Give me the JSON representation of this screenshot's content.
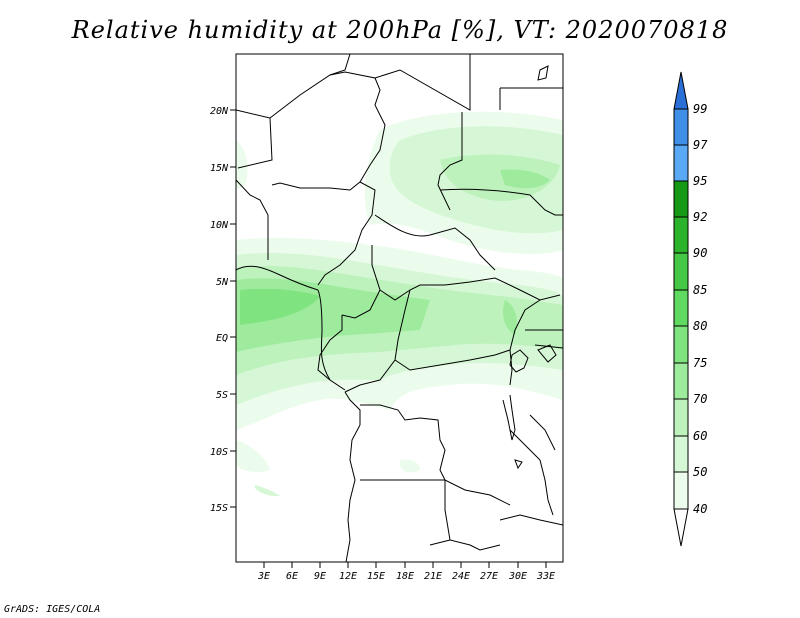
{
  "title": "Relative humidity at 200hPa [%], VT: 2020070818",
  "credit": "GrADS: IGES/COLA",
  "map": {
    "lat_ticks": [
      "20N",
      "15N",
      "10N",
      "5N",
      "EQ",
      "5S",
      "10S",
      "15S"
    ],
    "lon_ticks": [
      "3E",
      "6E",
      "9E",
      "12E",
      "15E",
      "18E",
      "21E",
      "24E",
      "27E",
      "30E",
      "33E"
    ]
  },
  "colorbar": {
    "labels": [
      "99",
      "97",
      "95",
      "92",
      "90",
      "85",
      "80",
      "75",
      "70",
      "60",
      "50",
      "40"
    ],
    "colors": [
      "#2a6fd6",
      "#3f8ee8",
      "#5aa9f5",
      "#169a16",
      "#2cb32c",
      "#45c845",
      "#5fd95f",
      "#7fe37f",
      "#9eeb9e",
      "#bdf2bd",
      "#d6f7d6",
      "#ecfcec"
    ]
  }
}
